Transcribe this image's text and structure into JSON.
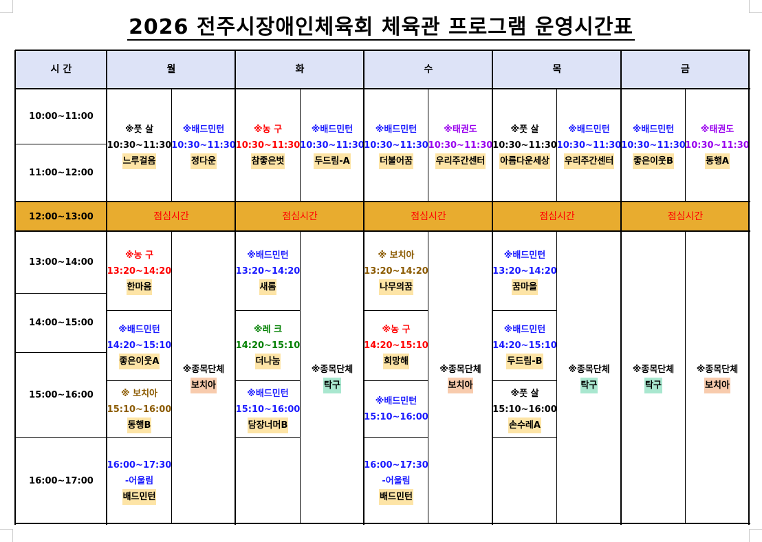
{
  "title": "2026 전주시장애인체육회 체육관 프로그램 운영시간표",
  "header": {
    "time_label": "시  간",
    "days": [
      "월",
      "화",
      "수",
      "목",
      "금"
    ]
  },
  "times": [
    "10:00~11:00",
    "11:00~12:00",
    "12:00~13:00",
    "13:00~14:00",
    "14:00~15:00",
    "15:00~16:00",
    "16:00~17:00"
  ],
  "lunch_label": "점심시간",
  "colors": {
    "header_bg": "#dde3f7",
    "lunch_bg": "#e8ac2f",
    "lunch_text": "#ff0000",
    "group_highlight": "#fde4a6",
    "boccia_highlight": "#f8cbad",
    "pingpong_highlight": "#a9e7cf"
  },
  "morning": [
    {
      "lines": [
        {
          "text": "※풋 살",
          "color": "#000000"
        },
        {
          "text": "10:30~11:30",
          "color": "#000000"
        },
        {
          "text": "느루걸음",
          "hl": "#fde4a6"
        }
      ]
    },
    {
      "lines": [
        {
          "text": "※배드민턴",
          "color": "#1a1aff"
        },
        {
          "text": "10:30~11:30",
          "color": "#1a1aff"
        },
        {
          "text": "정다운",
          "hl": "#fde4a6"
        }
      ]
    },
    {
      "lines": [
        {
          "text": "※농 구",
          "color": "#ff0000"
        },
        {
          "text": "10:30~11:30",
          "color": "#ff0000"
        },
        {
          "text": "참좋은벗",
          "hl": "#fde4a6"
        }
      ]
    },
    {
      "lines": [
        {
          "text": "※배드민턴",
          "color": "#1a1aff"
        },
        {
          "text": "10:30~11:30",
          "color": "#1a1aff"
        },
        {
          "text": "두드림-A",
          "hl": "#fde4a6"
        }
      ]
    },
    {
      "lines": [
        {
          "text": "※배드민턴",
          "color": "#1a1aff"
        },
        {
          "text": "10:30~11:30",
          "color": "#1a1aff"
        },
        {
          "text": "더불어꿈",
          "hl": "#fde4a6"
        }
      ]
    },
    {
      "lines": [
        {
          "text": "※태권도",
          "color": "#9900ee"
        },
        {
          "text": "10:30~11:30",
          "color": "#9900ee"
        },
        {
          "text": "우리주간센터",
          "hl": "#fde4a6"
        }
      ]
    },
    {
      "lines": [
        {
          "text": "※풋 살",
          "color": "#000000"
        },
        {
          "text": "10:30~11:30",
          "color": "#000000"
        },
        {
          "text": "아름다운세상",
          "hl": "#fde4a6"
        }
      ]
    },
    {
      "lines": [
        {
          "text": "※배드민턴",
          "color": "#1a1aff"
        },
        {
          "text": "10:30~11:30",
          "color": "#1a1aff"
        },
        {
          "text": "우리주간센터",
          "hl": "#fde4a6"
        }
      ]
    },
    {
      "lines": [
        {
          "text": "※배드민턴",
          "color": "#1a1aff"
        },
        {
          "text": "10:30~11:30",
          "color": "#1a1aff"
        },
        {
          "text": "좋은이웃B",
          "hl": "#fde4a6"
        }
      ]
    },
    {
      "lines": [
        {
          "text": "※태권도",
          "color": "#9900ee"
        },
        {
          "text": "10:30~11:30",
          "color": "#9900ee"
        },
        {
          "text": "동행A",
          "hl": "#fde4a6"
        }
      ]
    }
  ],
  "afternoon": [
    {
      "lines": [
        {
          "text": "※농 구",
          "color": "#ff0000"
        },
        {
          "text": "13:20~14:20",
          "color": "#ff0000"
        },
        {
          "text": "한마음",
          "hl": "#fde4a6"
        }
      ]
    },
    {
      "lines": [
        {
          "text": "※배드민턴",
          "color": "#1a1aff"
        },
        {
          "text": "14:20~15:10",
          "color": "#1a1aff"
        },
        {
          "text": "좋은이웃A",
          "hl": "#fde4a6"
        }
      ]
    },
    {
      "lines": [
        {
          "text": "※ 보치아",
          "color": "#8b5a00"
        },
        {
          "text": "15:10~16:00",
          "color": "#8b5a00"
        },
        {
          "text": "동행B",
          "hl": "#fde4a6"
        }
      ]
    },
    {
      "lines": [
        {
          "text": "16:00~17:30",
          "color": "#1a1aff"
        },
        {
          "text": "-어울림",
          "color": "#1a1aff"
        },
        {
          "text": "배드민턴",
          "hl": "#fde4a6"
        }
      ]
    },
    {
      "lines": [
        {
          "text": "※종목단체",
          "color": "#000000"
        },
        {
          "text": "보치아",
          "hl": "#f8cbad"
        }
      ]
    },
    {
      "lines": [
        {
          "text": "※배드민턴",
          "color": "#1a1aff"
        },
        {
          "text": "13:20~14:20",
          "color": "#1a1aff"
        },
        {
          "text": "새롬",
          "hl": "#fde4a6"
        }
      ]
    },
    {
      "lines": [
        {
          "text": "※레 크",
          "color": "#008000"
        },
        {
          "text": "14:20~15:10",
          "color": "#008000"
        },
        {
          "text": "더나눔",
          "hl": "#fde4a6"
        }
      ]
    },
    {
      "lines": [
        {
          "text": "※배드민턴",
          "color": "#1a1aff"
        },
        {
          "text": "15:10~16:00",
          "color": "#1a1aff"
        },
        {
          "text": "담장너머B",
          "hl": "#fde4a6"
        }
      ]
    },
    {
      "lines": []
    },
    {
      "lines": [
        {
          "text": "※종목단체",
          "color": "#000000"
        },
        {
          "text": "탁구",
          "hl": "#a9e7cf"
        }
      ]
    },
    {
      "lines": [
        {
          "text": "※ 보치아",
          "color": "#8b5a00"
        },
        {
          "text": "13:20~14:20",
          "color": "#8b5a00"
        },
        {
          "text": "나무의꿈",
          "hl": "#fde4a6"
        }
      ]
    },
    {
      "lines": [
        {
          "text": "※농 구",
          "color": "#ff0000"
        },
        {
          "text": "14:20~15:10",
          "color": "#ff0000"
        },
        {
          "text": "희망해",
          "hl": "#fde4a6"
        }
      ]
    },
    {
      "lines": [
        {
          "text": "※배드민턴",
          "color": "#1a1aff"
        },
        {
          "text": "15:10~16:00",
          "color": "#1a1aff"
        }
      ]
    },
    {
      "lines": [
        {
          "text": "16:00~17:30",
          "color": "#1a1aff"
        },
        {
          "text": "-어울림",
          "color": "#1a1aff"
        },
        {
          "text": "배드민턴",
          "hl": "#fde4a6"
        }
      ]
    },
    {
      "lines": [
        {
          "text": "※종목단체",
          "color": "#000000"
        },
        {
          "text": "보치아",
          "hl": "#f8cbad"
        }
      ]
    },
    {
      "lines": [
        {
          "text": "※배드민턴",
          "color": "#1a1aff"
        },
        {
          "text": "13:20~14:20",
          "color": "#1a1aff"
        },
        {
          "text": "꿈마을",
          "hl": "#fde4a6"
        }
      ]
    },
    {
      "lines": [
        {
          "text": "※배드민턴",
          "color": "#1a1aff"
        },
        {
          "text": "14:20~15:10",
          "color": "#1a1aff"
        },
        {
          "text": "두드림-B",
          "hl": "#fde4a6"
        }
      ]
    },
    {
      "lines": [
        {
          "text": "※풋 살",
          "color": "#000000"
        },
        {
          "text": "15:10~16:00",
          "color": "#000000"
        },
        {
          "text": "손수레A",
          "hl": "#fde4a6"
        }
      ]
    },
    {
      "lines": []
    },
    {
      "lines": [
        {
          "text": "※종목단체",
          "color": "#000000"
        },
        {
          "text": "탁구",
          "hl": "#a9e7cf"
        }
      ]
    },
    {
      "lines": [
        {
          "text": "※종목단체",
          "color": "#000000"
        },
        {
          "text": "탁구",
          "hl": "#a9e7cf"
        }
      ]
    },
    {
      "lines": [
        {
          "text": "※종목단체",
          "color": "#000000"
        },
        {
          "text": "보치아",
          "hl": "#f8cbad"
        }
      ]
    }
  ]
}
